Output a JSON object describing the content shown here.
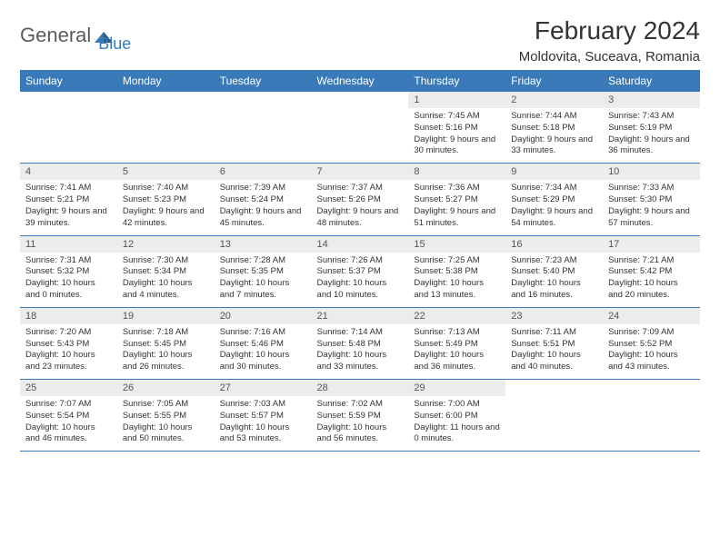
{
  "logo": {
    "text1": "General",
    "text2": "Blue"
  },
  "title": "February 2024",
  "location": "Moldovita, Suceava, Romania",
  "colors": {
    "header_bg": "#3a7ab8",
    "header_text": "#ffffff",
    "daynum_bg": "#ececec",
    "border": "#3a7ab8",
    "logo_gray": "#5a5a5a",
    "logo_blue": "#3a7ab8"
  },
  "day_headers": [
    "Sunday",
    "Monday",
    "Tuesday",
    "Wednesday",
    "Thursday",
    "Friday",
    "Saturday"
  ],
  "weeks": [
    [
      {
        "empty": true
      },
      {
        "empty": true
      },
      {
        "empty": true
      },
      {
        "empty": true
      },
      {
        "num": "1",
        "sunrise": "7:45 AM",
        "sunset": "5:16 PM",
        "daylight": "9 hours and 30 minutes."
      },
      {
        "num": "2",
        "sunrise": "7:44 AM",
        "sunset": "5:18 PM",
        "daylight": "9 hours and 33 minutes."
      },
      {
        "num": "3",
        "sunrise": "7:43 AM",
        "sunset": "5:19 PM",
        "daylight": "9 hours and 36 minutes."
      }
    ],
    [
      {
        "num": "4",
        "sunrise": "7:41 AM",
        "sunset": "5:21 PM",
        "daylight": "9 hours and 39 minutes."
      },
      {
        "num": "5",
        "sunrise": "7:40 AM",
        "sunset": "5:23 PM",
        "daylight": "9 hours and 42 minutes."
      },
      {
        "num": "6",
        "sunrise": "7:39 AM",
        "sunset": "5:24 PM",
        "daylight": "9 hours and 45 minutes."
      },
      {
        "num": "7",
        "sunrise": "7:37 AM",
        "sunset": "5:26 PM",
        "daylight": "9 hours and 48 minutes."
      },
      {
        "num": "8",
        "sunrise": "7:36 AM",
        "sunset": "5:27 PM",
        "daylight": "9 hours and 51 minutes."
      },
      {
        "num": "9",
        "sunrise": "7:34 AM",
        "sunset": "5:29 PM",
        "daylight": "9 hours and 54 minutes."
      },
      {
        "num": "10",
        "sunrise": "7:33 AM",
        "sunset": "5:30 PM",
        "daylight": "9 hours and 57 minutes."
      }
    ],
    [
      {
        "num": "11",
        "sunrise": "7:31 AM",
        "sunset": "5:32 PM",
        "daylight": "10 hours and 0 minutes."
      },
      {
        "num": "12",
        "sunrise": "7:30 AM",
        "sunset": "5:34 PM",
        "daylight": "10 hours and 4 minutes."
      },
      {
        "num": "13",
        "sunrise": "7:28 AM",
        "sunset": "5:35 PM",
        "daylight": "10 hours and 7 minutes."
      },
      {
        "num": "14",
        "sunrise": "7:26 AM",
        "sunset": "5:37 PM",
        "daylight": "10 hours and 10 minutes."
      },
      {
        "num": "15",
        "sunrise": "7:25 AM",
        "sunset": "5:38 PM",
        "daylight": "10 hours and 13 minutes."
      },
      {
        "num": "16",
        "sunrise": "7:23 AM",
        "sunset": "5:40 PM",
        "daylight": "10 hours and 16 minutes."
      },
      {
        "num": "17",
        "sunrise": "7:21 AM",
        "sunset": "5:42 PM",
        "daylight": "10 hours and 20 minutes."
      }
    ],
    [
      {
        "num": "18",
        "sunrise": "7:20 AM",
        "sunset": "5:43 PM",
        "daylight": "10 hours and 23 minutes."
      },
      {
        "num": "19",
        "sunrise": "7:18 AM",
        "sunset": "5:45 PM",
        "daylight": "10 hours and 26 minutes."
      },
      {
        "num": "20",
        "sunrise": "7:16 AM",
        "sunset": "5:46 PM",
        "daylight": "10 hours and 30 minutes."
      },
      {
        "num": "21",
        "sunrise": "7:14 AM",
        "sunset": "5:48 PM",
        "daylight": "10 hours and 33 minutes."
      },
      {
        "num": "22",
        "sunrise": "7:13 AM",
        "sunset": "5:49 PM",
        "daylight": "10 hours and 36 minutes."
      },
      {
        "num": "23",
        "sunrise": "7:11 AM",
        "sunset": "5:51 PM",
        "daylight": "10 hours and 40 minutes."
      },
      {
        "num": "24",
        "sunrise": "7:09 AM",
        "sunset": "5:52 PM",
        "daylight": "10 hours and 43 minutes."
      }
    ],
    [
      {
        "num": "25",
        "sunrise": "7:07 AM",
        "sunset": "5:54 PM",
        "daylight": "10 hours and 46 minutes."
      },
      {
        "num": "26",
        "sunrise": "7:05 AM",
        "sunset": "5:55 PM",
        "daylight": "10 hours and 50 minutes."
      },
      {
        "num": "27",
        "sunrise": "7:03 AM",
        "sunset": "5:57 PM",
        "daylight": "10 hours and 53 minutes."
      },
      {
        "num": "28",
        "sunrise": "7:02 AM",
        "sunset": "5:59 PM",
        "daylight": "10 hours and 56 minutes."
      },
      {
        "num": "29",
        "sunrise": "7:00 AM",
        "sunset": "6:00 PM",
        "daylight": "11 hours and 0 minutes."
      },
      {
        "empty": true
      },
      {
        "empty": true
      }
    ]
  ]
}
